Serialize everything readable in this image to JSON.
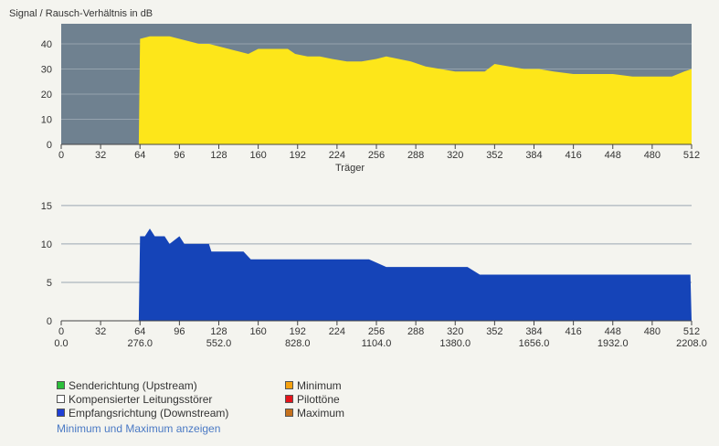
{
  "colors": {
    "snr_fill": "#fde61a",
    "snr_bg": "#6f8190",
    "bits_fill": "#1544b8",
    "upstream": "#2bbf3a",
    "crosstalk": "#ffffff",
    "downstream": "#1f3fd6",
    "minimum": "#f5a10f",
    "pilot": "#e3141b",
    "maximum": "#c5711e"
  },
  "chart_data": [
    {
      "type": "area",
      "title": "Signal / Rausch-Verhältnis in dB",
      "xlabel": "Träger",
      "ylabel": "",
      "xlim": [
        0,
        512
      ],
      "ylim": [
        0,
        48
      ],
      "x_ticks": [
        0,
        32,
        64,
        96,
        128,
        160,
        192,
        224,
        256,
        288,
        320,
        352,
        384,
        416,
        448,
        480,
        512
      ],
      "y_ticks": [
        0,
        10,
        20,
        30,
        40
      ],
      "series": [
        {
          "values": [
            [
              0,
              0
            ],
            [
              63,
              0
            ],
            [
              64,
              42
            ],
            [
              72,
              43
            ],
            [
              80,
              43
            ],
            [
              88,
              43
            ],
            [
              96,
              42
            ],
            [
              104,
              41
            ],
            [
              112,
              40
            ],
            [
              120,
              40
            ],
            [
              128,
              39
            ],
            [
              136,
              38
            ],
            [
              144,
              37
            ],
            [
              152,
              36
            ],
            [
              160,
              38
            ],
            [
              168,
              38
            ],
            [
              176,
              38
            ],
            [
              184,
              38
            ],
            [
              190,
              36
            ],
            [
              200,
              35
            ],
            [
              210,
              35
            ],
            [
              220,
              34
            ],
            [
              232,
              33
            ],
            [
              244,
              33
            ],
            [
              256,
              34
            ],
            [
              264,
              35
            ],
            [
              274,
              34
            ],
            [
              284,
              33
            ],
            [
              296,
              31
            ],
            [
              308,
              30
            ],
            [
              320,
              29
            ],
            [
              332,
              29
            ],
            [
              344,
              29
            ],
            [
              352,
              32
            ],
            [
              364,
              31
            ],
            [
              376,
              30
            ],
            [
              388,
              30
            ],
            [
              400,
              29
            ],
            [
              416,
              28
            ],
            [
              432,
              28
            ],
            [
              448,
              28
            ],
            [
              464,
              27
            ],
            [
              480,
              27
            ],
            [
              496,
              27
            ],
            [
              506,
              29
            ],
            [
              512,
              30
            ]
          ]
        }
      ]
    },
    {
      "type": "area",
      "title": "",
      "xlabel": "",
      "ylabel": "",
      "xlim": [
        0,
        512
      ],
      "ylim": [
        0,
        17
      ],
      "x_ticks": [
        0,
        32,
        64,
        96,
        128,
        160,
        192,
        224,
        256,
        288,
        320,
        352,
        384,
        416,
        448,
        480,
        512
      ],
      "x_ticks_secondary": [
        "0.0",
        "276.0",
        "552.0",
        "828.0",
        "1104.0",
        "1380.0",
        "1656.0",
        "1932.0",
        "2208.0"
      ],
      "y_ticks": [
        0,
        5,
        10,
        15
      ],
      "series": [
        {
          "values": [
            [
              0,
              0
            ],
            [
              63,
              0
            ],
            [
              64,
              11
            ],
            [
              68,
              11
            ],
            [
              72,
              12
            ],
            [
              76,
              11
            ],
            [
              84,
              11
            ],
            [
              88,
              10
            ],
            [
              96,
              11
            ],
            [
              100,
              10
            ],
            [
              110,
              10
            ],
            [
              120,
              10
            ],
            [
              122,
              9
            ],
            [
              136,
              9
            ],
            [
              148,
              9
            ],
            [
              154,
              8
            ],
            [
              176,
              8
            ],
            [
              184,
              8
            ],
            [
              200,
              8
            ],
            [
              216,
              8
            ],
            [
              236,
              8
            ],
            [
              250,
              8
            ],
            [
              264,
              7
            ],
            [
              280,
              7
            ],
            [
              296,
              7
            ],
            [
              312,
              7
            ],
            [
              330,
              7
            ],
            [
              340,
              6
            ],
            [
              356,
              6
            ],
            [
              372,
              6
            ],
            [
              384,
              6
            ],
            [
              400,
              6
            ],
            [
              416,
              6
            ],
            [
              432,
              6
            ],
            [
              448,
              6
            ],
            [
              464,
              6
            ],
            [
              480,
              6
            ],
            [
              496,
              6
            ],
            [
              511,
              6
            ],
            [
              512,
              0
            ]
          ]
        }
      ]
    }
  ],
  "legend": {
    "upstream": "Senderichtung (Upstream)",
    "crosstalk": "Kompensierter Leitungsstörer",
    "downstream": "Empfangsrichtung (Downstream)",
    "minimum": "Minimum",
    "pilot": "Pilottöne",
    "maximum": "Maximum"
  },
  "toggle_link": "Minimum und Maximum anzeigen"
}
